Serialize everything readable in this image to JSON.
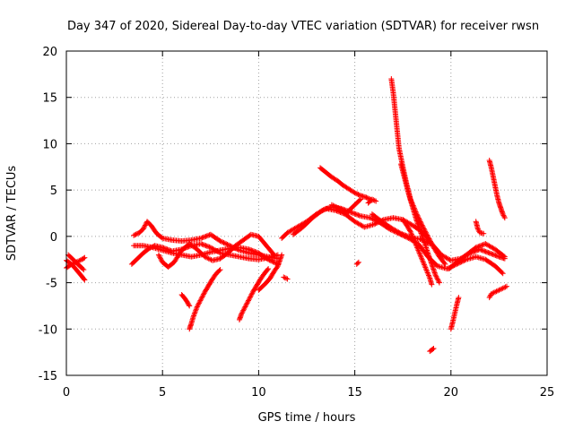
{
  "chart_data": {
    "type": "scatter",
    "title": "Day 347 of 2020, Sidereal Day-to-day VTEC variation (SDTVAR) for receiver rwsn",
    "xlabel": "GPS time / hours",
    "ylabel": "SDTVAR / TECUs",
    "xlim": [
      0,
      25
    ],
    "ylim": [
      -15,
      20
    ],
    "xticks": [
      0,
      5,
      10,
      15,
      20,
      25
    ],
    "yticks": [
      -15,
      -10,
      -5,
      0,
      5,
      10,
      15,
      20
    ],
    "grid": true,
    "marker": "+",
    "color": "#ff0000",
    "series": [
      {
        "name": "arc-early-a",
        "points": [
          [
            0.0,
            -2.6
          ],
          [
            0.2,
            -2.9
          ],
          [
            0.4,
            -3.3
          ],
          [
            0.6,
            -3.8
          ],
          [
            0.8,
            -4.3
          ],
          [
            0.95,
            -4.7
          ]
        ]
      },
      {
        "name": "arc-early-b",
        "points": [
          [
            0.0,
            -3.4
          ],
          [
            0.2,
            -3.1
          ],
          [
            0.4,
            -2.9
          ],
          [
            0.6,
            -2.7
          ],
          [
            0.8,
            -2.5
          ],
          [
            0.95,
            -2.3
          ]
        ]
      },
      {
        "name": "arc-early-c",
        "points": [
          [
            0.1,
            -2.0
          ],
          [
            0.3,
            -2.4
          ],
          [
            0.5,
            -2.8
          ],
          [
            0.7,
            -3.2
          ],
          [
            0.9,
            -3.6
          ]
        ]
      },
      {
        "name": "arc-a",
        "points": [
          [
            3.5,
            0.1
          ],
          [
            3.8,
            0.4
          ],
          [
            4.0,
            0.8
          ],
          [
            4.2,
            1.6
          ],
          [
            4.4,
            1.2
          ],
          [
            4.7,
            0.3
          ],
          [
            5.0,
            -0.2
          ],
          [
            5.5,
            -0.4
          ],
          [
            6.0,
            -0.5
          ],
          [
            6.5,
            -0.4
          ],
          [
            7.0,
            -0.2
          ],
          [
            7.5,
            0.2
          ],
          [
            8.0,
            -0.5
          ],
          [
            8.5,
            -1.0
          ],
          [
            9.0,
            -1.5
          ],
          [
            9.5,
            -1.8
          ],
          [
            10.0,
            -2.0
          ],
          [
            10.5,
            -2.2
          ],
          [
            11.0,
            -2.4
          ]
        ]
      },
      {
        "name": "arc-b",
        "points": [
          [
            3.4,
            -3.0
          ],
          [
            3.6,
            -2.6
          ],
          [
            3.8,
            -2.2
          ],
          [
            4.0,
            -1.8
          ],
          [
            4.3,
            -1.3
          ],
          [
            4.6,
            -1.0
          ],
          [
            5.0,
            -1.2
          ],
          [
            5.5,
            -1.6
          ],
          [
            6.0,
            -1.4
          ],
          [
            6.5,
            -1.0
          ],
          [
            7.0,
            -0.8
          ],
          [
            7.5,
            -1.2
          ],
          [
            8.0,
            -1.8
          ],
          [
            8.5,
            -2.0
          ],
          [
            9.0,
            -2.2
          ],
          [
            9.5,
            -2.4
          ],
          [
            10.0,
            -2.5
          ],
          [
            10.5,
            -2.3
          ],
          [
            11.0,
            -2.0
          ]
        ]
      },
      {
        "name": "arc-c",
        "points": [
          [
            3.5,
            -1.0
          ],
          [
            4.0,
            -1.0
          ],
          [
            4.5,
            -1.2
          ],
          [
            5.0,
            -1.5
          ],
          [
            5.5,
            -1.8
          ],
          [
            6.0,
            -2.0
          ],
          [
            6.5,
            -2.2
          ],
          [
            7.0,
            -2.0
          ],
          [
            7.5,
            -1.7
          ],
          [
            8.0,
            -1.5
          ],
          [
            8.5,
            -1.3
          ],
          [
            9.0,
            -1.2
          ],
          [
            9.5,
            -1.4
          ],
          [
            10.0,
            -1.8
          ],
          [
            10.5,
            -2.5
          ],
          [
            11.0,
            -3.0
          ]
        ]
      },
      {
        "name": "arc-d",
        "points": [
          [
            4.8,
            -2.0
          ],
          [
            5.0,
            -2.8
          ],
          [
            5.3,
            -3.3
          ],
          [
            5.6,
            -2.8
          ],
          [
            6.0,
            -1.5
          ],
          [
            6.4,
            -0.8
          ],
          [
            6.8,
            -1.4
          ],
          [
            7.2,
            -2.2
          ],
          [
            7.6,
            -2.6
          ],
          [
            8.0,
            -2.4
          ],
          [
            8.4,
            -1.8
          ],
          [
            8.8,
            -1.0
          ],
          [
            9.2,
            -0.4
          ],
          [
            9.6,
            0.2
          ],
          [
            10.0,
            0.0
          ],
          [
            10.4,
            -1.0
          ],
          [
            10.8,
            -2.0
          ]
        ]
      },
      {
        "name": "arc-e",
        "points": [
          [
            6.0,
            -6.3
          ],
          [
            6.2,
            -6.8
          ],
          [
            6.4,
            -7.5
          ]
        ]
      },
      {
        "name": "arc-f",
        "points": [
          [
            6.4,
            -10.0
          ],
          [
            6.5,
            -9.4
          ],
          [
            6.6,
            -8.7
          ],
          [
            6.8,
            -7.6
          ],
          [
            7.0,
            -6.8
          ],
          [
            7.2,
            -6.0
          ],
          [
            7.4,
            -5.3
          ],
          [
            7.6,
            -4.6
          ],
          [
            7.8,
            -4.0
          ],
          [
            8.0,
            -3.6
          ]
        ]
      },
      {
        "name": "arc-g",
        "points": [
          [
            9.0,
            -9.0
          ],
          [
            9.1,
            -8.4
          ],
          [
            9.3,
            -7.6
          ],
          [
            9.5,
            -6.8
          ],
          [
            9.7,
            -6.0
          ],
          [
            9.9,
            -5.3
          ],
          [
            10.1,
            -4.6
          ],
          [
            10.3,
            -4.0
          ],
          [
            10.5,
            -3.5
          ]
        ]
      },
      {
        "name": "arc-h",
        "points": [
          [
            10.0,
            -5.8
          ],
          [
            10.2,
            -5.4
          ],
          [
            10.4,
            -5.0
          ],
          [
            10.6,
            -4.5
          ],
          [
            10.8,
            -3.8
          ],
          [
            11.0,
            -3.2
          ],
          [
            11.2,
            -2.0
          ]
        ]
      },
      {
        "name": "arc-i",
        "points": [
          [
            11.3,
            -4.4
          ],
          [
            11.5,
            -4.6
          ]
        ]
      },
      {
        "name": "arc-j",
        "points": [
          [
            11.2,
            -0.2
          ],
          [
            11.5,
            0.4
          ],
          [
            12.0,
            1.0
          ],
          [
            12.5,
            1.6
          ],
          [
            13.0,
            2.4
          ],
          [
            13.5,
            3.0
          ],
          [
            14.0,
            2.8
          ],
          [
            14.5,
            2.4
          ],
          [
            15.0,
            1.6
          ],
          [
            15.5,
            1.0
          ],
          [
            16.0,
            1.3
          ],
          [
            16.5,
            1.8
          ],
          [
            17.0,
            2.0
          ],
          [
            17.5,
            1.8
          ],
          [
            18.0,
            1.2
          ],
          [
            18.5,
            0.5
          ],
          [
            19.0,
            -0.8
          ],
          [
            19.5,
            -2.0
          ],
          [
            20.0,
            -2.6
          ],
          [
            20.5,
            -2.4
          ],
          [
            21.0,
            -1.8
          ],
          [
            21.5,
            -1.4
          ],
          [
            22.0,
            -1.8
          ],
          [
            22.5,
            -2.2
          ],
          [
            22.8,
            -2.4
          ]
        ]
      },
      {
        "name": "arc-k",
        "points": [
          [
            11.8,
            0.2
          ],
          [
            12.3,
            1.0
          ],
          [
            12.8,
            2.0
          ],
          [
            13.3,
            2.8
          ],
          [
            13.8,
            3.2
          ],
          [
            14.3,
            3.0
          ],
          [
            14.8,
            2.6
          ],
          [
            15.3,
            2.2
          ],
          [
            15.8,
            2.0
          ],
          [
            16.3,
            1.5
          ],
          [
            16.8,
            0.8
          ],
          [
            17.3,
            0.3
          ],
          [
            17.8,
            -0.2
          ],
          [
            18.3,
            -0.8
          ],
          [
            18.8,
            -2.2
          ],
          [
            19.3,
            -3.2
          ],
          [
            19.8,
            -3.5
          ],
          [
            20.3,
            -3.0
          ],
          [
            20.8,
            -2.5
          ],
          [
            21.3,
            -2.2
          ],
          [
            21.8,
            -2.5
          ],
          [
            22.3,
            -3.2
          ],
          [
            22.7,
            -4.0
          ]
        ]
      },
      {
        "name": "arc-l",
        "points": [
          [
            13.2,
            7.4
          ],
          [
            13.5,
            6.9
          ],
          [
            13.8,
            6.4
          ],
          [
            14.1,
            6.0
          ],
          [
            14.4,
            5.5
          ],
          [
            14.7,
            5.1
          ],
          [
            15.0,
            4.7
          ],
          [
            15.3,
            4.4
          ],
          [
            15.6,
            4.2
          ],
          [
            15.9,
            3.9
          ]
        ]
      },
      {
        "name": "arc-m",
        "points": [
          [
            13.8,
            3.4
          ],
          [
            14.2,
            3.0
          ],
          [
            14.6,
            2.6
          ],
          [
            15.0,
            3.4
          ],
          [
            15.3,
            4.0
          ]
        ]
      },
      {
        "name": "arc-n",
        "points": [
          [
            15.1,
            -3.0
          ],
          [
            15.2,
            -2.8
          ]
        ]
      },
      {
        "name": "arc-o",
        "points": [
          [
            15.7,
            3.6
          ],
          [
            15.9,
            4.0
          ],
          [
            16.1,
            3.8
          ]
        ]
      },
      {
        "name": "arc-p",
        "points": [
          [
            15.9,
            2.4
          ],
          [
            16.4,
            1.6
          ],
          [
            16.9,
            0.9
          ],
          [
            17.4,
            0.3
          ],
          [
            17.9,
            -0.1
          ],
          [
            18.4,
            -0.3
          ],
          [
            18.9,
            -0.8
          ]
        ]
      },
      {
        "name": "arc-q",
        "points": [
          [
            16.9,
            17.0
          ],
          [
            17.0,
            15.5
          ],
          [
            17.1,
            13.5
          ],
          [
            17.2,
            11.5
          ],
          [
            17.3,
            9.5
          ],
          [
            17.5,
            7.5
          ],
          [
            17.7,
            5.6
          ],
          [
            17.9,
            4.0
          ],
          [
            18.2,
            2.5
          ],
          [
            18.5,
            1.2
          ],
          [
            18.8,
            0.0
          ],
          [
            19.1,
            -1.2
          ],
          [
            19.4,
            -2.2
          ],
          [
            19.7,
            -3.0
          ]
        ]
      },
      {
        "name": "arc-r",
        "points": [
          [
            17.4,
            7.8
          ],
          [
            17.6,
            6.2
          ],
          [
            17.8,
            4.6
          ],
          [
            18.0,
            3.2
          ],
          [
            18.2,
            1.8
          ],
          [
            18.4,
            0.6
          ],
          [
            18.6,
            -0.5
          ],
          [
            18.8,
            -1.8
          ],
          [
            19.0,
            -3.0
          ],
          [
            19.2,
            -4.2
          ],
          [
            19.4,
            -5.0
          ]
        ]
      },
      {
        "name": "arc-s",
        "points": [
          [
            17.5,
            1.8
          ],
          [
            17.7,
            1.2
          ],
          [
            17.9,
            0.5
          ],
          [
            18.1,
            -0.5
          ],
          [
            18.3,
            -1.5
          ],
          [
            18.5,
            -2.5
          ],
          [
            18.7,
            -3.5
          ],
          [
            18.9,
            -4.5
          ],
          [
            19.0,
            -5.2
          ]
        ]
      },
      {
        "name": "arc-t",
        "points": [
          [
            18.9,
            -12.4
          ],
          [
            19.1,
            -12.1
          ]
        ]
      },
      {
        "name": "arc-u",
        "points": [
          [
            20.0,
            -10.0
          ],
          [
            20.1,
            -9.2
          ],
          [
            20.2,
            -8.3
          ],
          [
            20.3,
            -7.4
          ],
          [
            20.4,
            -6.6
          ]
        ]
      },
      {
        "name": "arc-v",
        "points": [
          [
            19.9,
            -3.5
          ],
          [
            20.3,
            -2.8
          ],
          [
            20.8,
            -2.0
          ],
          [
            21.3,
            -1.2
          ],
          [
            21.8,
            -0.8
          ],
          [
            22.3,
            -1.4
          ],
          [
            22.8,
            -2.2
          ]
        ]
      },
      {
        "name": "arc-w",
        "points": [
          [
            21.3,
            1.6
          ],
          [
            21.4,
            0.8
          ],
          [
            21.5,
            0.4
          ],
          [
            21.7,
            0.3
          ]
        ]
      },
      {
        "name": "arc-x",
        "points": [
          [
            22.0,
            8.2
          ],
          [
            22.1,
            7.4
          ],
          [
            22.2,
            6.4
          ],
          [
            22.3,
            5.4
          ],
          [
            22.4,
            4.4
          ],
          [
            22.5,
            3.6
          ],
          [
            22.6,
            3.0
          ],
          [
            22.7,
            2.4
          ],
          [
            22.8,
            2.0
          ]
        ]
      },
      {
        "name": "arc-y",
        "points": [
          [
            22.0,
            -6.6
          ],
          [
            22.1,
            -6.2
          ],
          [
            22.3,
            -6.0
          ],
          [
            22.5,
            -5.8
          ],
          [
            22.7,
            -5.6
          ],
          [
            22.9,
            -5.4
          ]
        ]
      }
    ]
  }
}
